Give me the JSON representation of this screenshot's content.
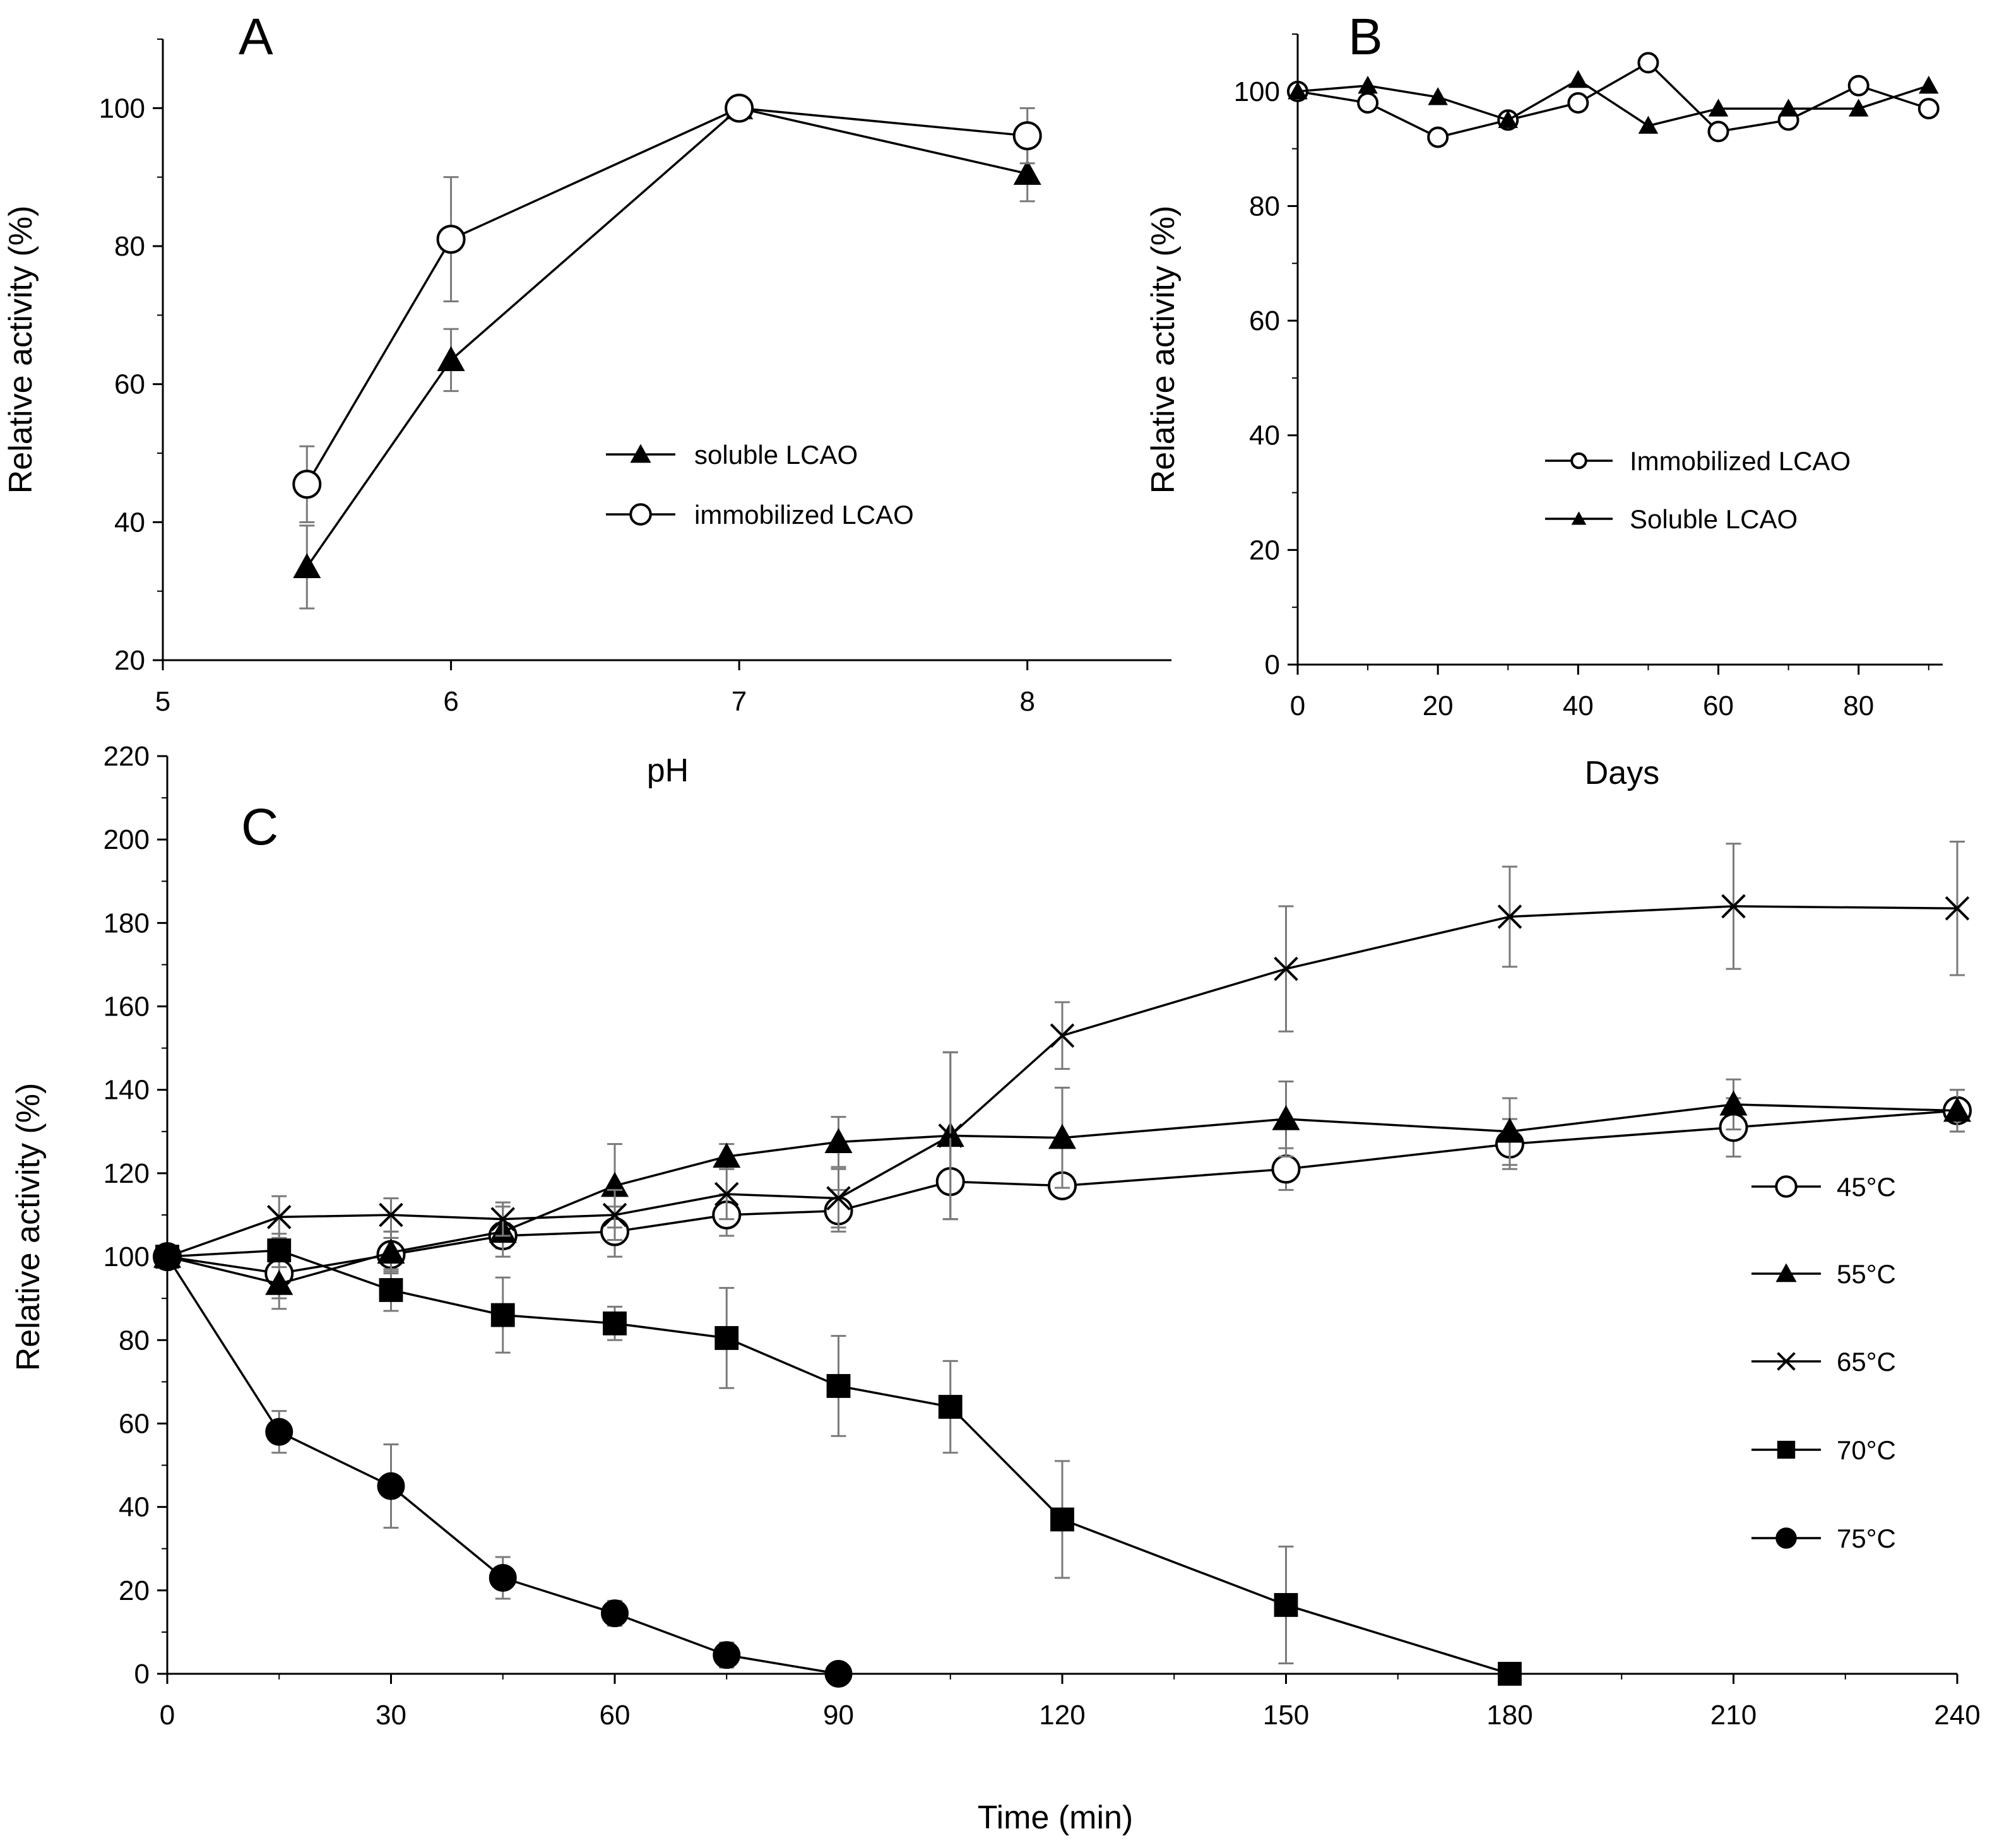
{
  "chart_data": [
    {
      "panel": "A",
      "type": "line",
      "panel_label": "A",
      "xlabel": "pH",
      "ylabel": "Relative activity (%)",
      "xlim": [
        5,
        8.5
      ],
      "ylim": [
        20,
        110
      ],
      "xticks": [
        5,
        6,
        7,
        8
      ],
      "yticks": [
        20,
        40,
        60,
        80,
        100
      ],
      "legend_position": "center-right",
      "series": [
        {
          "name": "soluble LCAO",
          "marker": "triangle-filled",
          "x": [
            5.5,
            6,
            7,
            8
          ],
          "y": [
            33.5,
            63.5,
            100,
            90.5
          ],
          "err": [
            6,
            4.5,
            0,
            4
          ]
        },
        {
          "name": "immobilized LCAO",
          "marker": "circle-open",
          "x": [
            5.5,
            6,
            7,
            8
          ],
          "y": [
            45.5,
            81,
            100,
            96
          ],
          "err": [
            5.5,
            9,
            0,
            4
          ]
        }
      ]
    },
    {
      "panel": "B",
      "type": "line",
      "panel_label": "B",
      "xlabel": "Days",
      "ylabel": "Relative activity (%)",
      "xlim": [
        0,
        92
      ],
      "ylim": [
        0,
        110
      ],
      "xticks": [
        0,
        20,
        40,
        60,
        80
      ],
      "yticks": [
        0,
        20,
        40,
        60,
        80,
        100
      ],
      "legend_position": "center",
      "series": [
        {
          "name": "Immobilized LCAO",
          "marker": "circle-open",
          "x": [
            0,
            10,
            20,
            30,
            40,
            50,
            60,
            70,
            80,
            90
          ],
          "y": [
            100,
            98,
            92,
            95,
            98,
            105,
            93,
            95,
            101,
            97
          ]
        },
        {
          "name": "Soluble LCAO",
          "marker": "triangle-filled",
          "x": [
            0,
            10,
            20,
            30,
            40,
            50,
            60,
            70,
            80,
            90
          ],
          "y": [
            100,
            101,
            99,
            95,
            102,
            94,
            97,
            97,
            97,
            101
          ]
        }
      ]
    },
    {
      "panel": "C",
      "type": "line",
      "panel_label": "C",
      "xlabel": "Time (min)",
      "ylabel": "Relative activity (%)",
      "xlim": [
        0,
        240
      ],
      "ylim": [
        0,
        220
      ],
      "xticks": [
        0,
        30,
        60,
        90,
        120,
        150,
        180,
        210,
        240
      ],
      "yticks": [
        0,
        20,
        40,
        60,
        80,
        100,
        120,
        140,
        160,
        180,
        200,
        220
      ],
      "legend_position": "right",
      "series": [
        {
          "name": "45°C",
          "marker": "circle-open",
          "x": [
            0,
            15,
            30,
            45,
            60,
            75,
            90,
            105,
            120,
            150,
            180,
            210,
            240
          ],
          "y": [
            100,
            96,
            100.5,
            105,
            106,
            110,
            111,
            118,
            117,
            121,
            127,
            131,
            135
          ],
          "err": [
            0,
            6,
            4,
            3,
            6,
            5,
            5,
            9,
            0,
            5,
            6,
            7,
            5
          ]
        },
        {
          "name": "55°C",
          "marker": "triangle-filled",
          "x": [
            0,
            15,
            30,
            45,
            60,
            75,
            90,
            105,
            120,
            150,
            180,
            210,
            240
          ],
          "y": [
            100,
            93.5,
            101,
            106,
            117,
            124,
            127.5,
            129,
            128.5,
            133,
            130,
            136.5,
            135
          ],
          "err": [
            0,
            6,
            5,
            6,
            10,
            3,
            6,
            20,
            12,
            9,
            8,
            6,
            5
          ]
        },
        {
          "name": "65°C",
          "marker": "x",
          "x": [
            0,
            15,
            30,
            45,
            60,
            75,
            90,
            105,
            120,
            150,
            180,
            210,
            240
          ],
          "y": [
            100,
            109.5,
            110,
            109,
            110,
            115,
            114,
            129,
            153,
            169,
            181.5,
            184,
            183.5
          ],
          "err": [
            0,
            5,
            4,
            4,
            6,
            6,
            7,
            20,
            8,
            15,
            12,
            15,
            16
          ]
        },
        {
          "name": "70°C",
          "marker": "square-filled",
          "x": [
            0,
            15,
            30,
            45,
            60,
            75,
            90,
            105,
            120,
            150,
            180
          ],
          "y": [
            100,
            101.5,
            92,
            86,
            84,
            80.5,
            69,
            64,
            37,
            16.5,
            0
          ],
          "err": [
            0,
            4,
            5,
            9,
            4,
            12,
            12,
            11,
            14,
            14,
            0
          ]
        },
        {
          "name": "75°C",
          "marker": "circle-filled",
          "x": [
            0,
            15,
            30,
            45,
            60,
            75,
            90
          ],
          "y": [
            100,
            58,
            45,
            23,
            14.5,
            4.5,
            0
          ],
          "err": [
            0,
            5,
            10,
            5,
            3,
            3,
            0
          ]
        }
      ]
    }
  ]
}
